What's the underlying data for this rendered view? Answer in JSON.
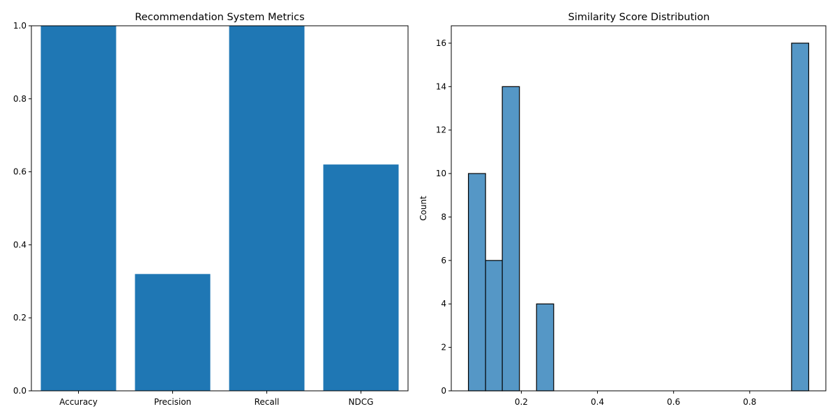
{
  "chart_data": [
    {
      "type": "bar",
      "title": "Recommendation System Metrics",
      "xlabel": "",
      "ylabel": "",
      "categories": [
        "Accuracy",
        "Precision",
        "Recall",
        "NDCG"
      ],
      "values": [
        1.0,
        0.32,
        1.0,
        0.62
      ],
      "ylim": [
        0,
        1.0
      ],
      "yticks": [
        0.0,
        0.2,
        0.4,
        0.6,
        0.8,
        1.0
      ],
      "ytick_labels": [
        "0.0",
        "0.2",
        "0.4",
        "0.6",
        "0.8",
        "1.0"
      ],
      "grid": false,
      "colors": {
        "bar": "#1f77b4"
      }
    },
    {
      "type": "bar",
      "subtype": "histogram",
      "title": "Similarity Score Distribution",
      "xlabel": "",
      "ylabel": "Count",
      "bins": [
        {
          "x0": 0.061,
          "x1": 0.106,
          "count": 10
        },
        {
          "x0": 0.106,
          "x1": 0.15,
          "count": 6
        },
        {
          "x0": 0.15,
          "x1": 0.195,
          "count": 14
        },
        {
          "x0": 0.195,
          "x1": 0.24,
          "count": 0
        },
        {
          "x0": 0.24,
          "x1": 0.285,
          "count": 4
        },
        {
          "x0": 0.285,
          "x1": 0.329,
          "count": 0
        },
        {
          "x0": 0.329,
          "x1": 0.374,
          "count": 0
        },
        {
          "x0": 0.374,
          "x1": 0.419,
          "count": 0
        },
        {
          "x0": 0.419,
          "x1": 0.463,
          "count": 0
        },
        {
          "x0": 0.463,
          "x1": 0.508,
          "count": 0
        },
        {
          "x0": 0.508,
          "x1": 0.553,
          "count": 0
        },
        {
          "x0": 0.553,
          "x1": 0.597,
          "count": 0
        },
        {
          "x0": 0.597,
          "x1": 0.642,
          "count": 0
        },
        {
          "x0": 0.642,
          "x1": 0.687,
          "count": 0
        },
        {
          "x0": 0.687,
          "x1": 0.731,
          "count": 0
        },
        {
          "x0": 0.731,
          "x1": 0.776,
          "count": 0
        },
        {
          "x0": 0.776,
          "x1": 0.821,
          "count": 0
        },
        {
          "x0": 0.821,
          "x1": 0.865,
          "count": 0
        },
        {
          "x0": 0.865,
          "x1": 0.91,
          "count": 0
        },
        {
          "x0": 0.91,
          "x1": 0.955,
          "count": 16
        }
      ],
      "xlim": [
        0.016,
        1.0
      ],
      "ylim": [
        0,
        16.8
      ],
      "xticks": [
        0.2,
        0.4,
        0.6,
        0.8
      ],
      "xtick_labels": [
        "0.2",
        "0.4",
        "0.6",
        "0.8"
      ],
      "yticks": [
        0,
        2,
        4,
        6,
        8,
        10,
        12,
        14,
        16
      ],
      "ytick_labels": [
        "0",
        "2",
        "4",
        "6",
        "8",
        "10",
        "12",
        "14",
        "16"
      ],
      "grid": false,
      "colors": {
        "bar": "#5597c6",
        "edge": "#000000"
      }
    }
  ]
}
